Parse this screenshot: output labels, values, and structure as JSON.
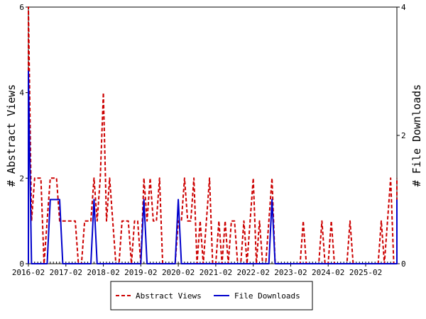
{
  "chart_data": {
    "type": "line",
    "ylabel_left": "# Abstract Views",
    "ylabel_right": "# File Downloads",
    "xlabel": "",
    "ylim_left": [
      0,
      6
    ],
    "ylim_right": [
      0,
      4
    ],
    "yticks_left": [
      0,
      2,
      4,
      6
    ],
    "yticks_right": [
      0,
      2,
      4
    ],
    "x_ticks": [
      "2016-02",
      "2017-02",
      "2018-02",
      "2019-02",
      "2020-02",
      "2021-02",
      "2022-02",
      "2023-02",
      "2024-02",
      "2025-02"
    ],
    "x_start": "2016-02",
    "x_end": "2025-12",
    "grid": false,
    "legend_position": "bottom",
    "series": [
      {
        "name": "Abstract Views",
        "axis": "left",
        "color": "#cc0000",
        "style": "dashed",
        "points": [
          [
            "2016-01",
            0
          ],
          [
            "2016-02",
            6
          ],
          [
            "2016-03",
            1
          ],
          [
            "2016-04",
            2
          ],
          [
            "2016-05",
            2
          ],
          [
            "2016-06",
            2
          ],
          [
            "2016-07",
            0
          ],
          [
            "2016-08",
            1
          ],
          [
            "2016-09",
            2
          ],
          [
            "2016-10",
            2
          ],
          [
            "2016-11",
            2
          ],
          [
            "2016-12",
            1
          ],
          [
            "2017-01",
            1
          ],
          [
            "2017-02",
            1
          ],
          [
            "2017-03",
            1
          ],
          [
            "2017-04",
            1
          ],
          [
            "2017-05",
            1
          ],
          [
            "2017-06",
            0
          ],
          [
            "2017-07",
            0
          ],
          [
            "2017-08",
            1
          ],
          [
            "2017-09",
            1
          ],
          [
            "2017-10",
            1
          ],
          [
            "2017-11",
            2
          ],
          [
            "2017-12",
            1
          ],
          [
            "2018-01",
            2
          ],
          [
            "2018-02",
            4
          ],
          [
            "2018-03",
            1
          ],
          [
            "2018-04",
            2
          ],
          [
            "2018-05",
            1
          ],
          [
            "2018-06",
            0
          ],
          [
            "2018-07",
            0
          ],
          [
            "2018-08",
            1
          ],
          [
            "2018-09",
            1
          ],
          [
            "2018-10",
            1
          ],
          [
            "2018-11",
            0
          ],
          [
            "2018-12",
            1
          ],
          [
            "2019-01",
            1
          ],
          [
            "2019-02",
            0
          ],
          [
            "2019-03",
            2
          ],
          [
            "2019-04",
            1
          ],
          [
            "2019-05",
            2
          ],
          [
            "2019-06",
            1
          ],
          [
            "2019-07",
            1
          ],
          [
            "2019-08",
            2
          ],
          [
            "2019-09",
            0
          ],
          [
            "2019-10",
            0
          ],
          [
            "2019-11",
            0
          ],
          [
            "2019-12",
            0
          ],
          [
            "2020-01",
            0
          ],
          [
            "2020-02",
            1
          ],
          [
            "2020-03",
            1
          ],
          [
            "2020-04",
            2
          ],
          [
            "2020-05",
            1
          ],
          [
            "2020-06",
            1
          ],
          [
            "2020-07",
            2
          ],
          [
            "2020-08",
            0
          ],
          [
            "2020-09",
            1
          ],
          [
            "2020-10",
            0
          ],
          [
            "2020-11",
            1
          ],
          [
            "2020-12",
            2
          ],
          [
            "2021-01",
            0
          ],
          [
            "2021-02",
            0
          ],
          [
            "2021-03",
            1
          ],
          [
            "2021-04",
            0
          ],
          [
            "2021-05",
            1
          ],
          [
            "2021-06",
            0
          ],
          [
            "2021-07",
            1
          ],
          [
            "2021-08",
            1
          ],
          [
            "2021-09",
            0
          ],
          [
            "2021-10",
            0
          ],
          [
            "2021-11",
            1
          ],
          [
            "2021-12",
            0
          ],
          [
            "2022-01",
            1
          ],
          [
            "2022-02",
            2
          ],
          [
            "2022-03",
            0
          ],
          [
            "2022-04",
            1
          ],
          [
            "2022-05",
            0
          ],
          [
            "2022-06",
            0
          ],
          [
            "2022-07",
            1
          ],
          [
            "2022-08",
            2
          ],
          [
            "2022-09",
            0
          ],
          [
            "2022-10",
            0
          ],
          [
            "2022-11",
            0
          ],
          [
            "2022-12",
            0
          ],
          [
            "2023-01",
            0
          ],
          [
            "2023-02",
            0
          ],
          [
            "2023-03",
            0
          ],
          [
            "2023-04",
            0
          ],
          [
            "2023-05",
            0
          ],
          [
            "2023-06",
            1
          ],
          [
            "2023-07",
            0
          ],
          [
            "2023-08",
            0
          ],
          [
            "2023-09",
            0
          ],
          [
            "2023-10",
            0
          ],
          [
            "2023-11",
            0
          ],
          [
            "2023-12",
            1
          ],
          [
            "2024-01",
            0
          ],
          [
            "2024-02",
            0
          ],
          [
            "2024-03",
            1
          ],
          [
            "2024-04",
            0
          ],
          [
            "2024-05",
            0
          ],
          [
            "2024-06",
            0
          ],
          [
            "2024-07",
            0
          ],
          [
            "2024-08",
            0
          ],
          [
            "2024-09",
            1
          ],
          [
            "2024-10",
            0
          ],
          [
            "2024-11",
            0
          ],
          [
            "2024-12",
            0
          ],
          [
            "2025-01",
            0
          ],
          [
            "2025-02",
            0
          ],
          [
            "2025-03",
            0
          ],
          [
            "2025-04",
            0
          ],
          [
            "2025-05",
            0
          ],
          [
            "2025-06",
            0
          ],
          [
            "2025-07",
            1
          ],
          [
            "2025-08",
            0
          ],
          [
            "2025-09",
            1
          ],
          [
            "2025-10",
            2
          ],
          [
            "2025-11",
            0
          ],
          [
            "2025-12",
            0
          ],
          [
            "2026-01",
            2
          ]
        ]
      },
      {
        "name": "File Downloads",
        "axis": "right",
        "color": "#0000cc",
        "style": "solid",
        "points": [
          [
            "2016-01",
            0
          ],
          [
            "2016-02",
            3
          ],
          [
            "2016-03",
            0
          ],
          [
            "2016-04",
            0
          ],
          [
            "2016-05",
            0
          ],
          [
            "2016-06",
            0
          ],
          [
            "2016-07",
            0
          ],
          [
            "2016-08",
            0
          ],
          [
            "2016-09",
            1
          ],
          [
            "2016-10",
            1
          ],
          [
            "2016-11",
            1
          ],
          [
            "2016-12",
            1
          ],
          [
            "2017-01",
            0
          ],
          [
            "2017-02",
            0
          ],
          [
            "2017-03",
            0
          ],
          [
            "2017-04",
            0
          ],
          [
            "2017-05",
            0
          ],
          [
            "2017-06",
            0
          ],
          [
            "2017-07",
            0
          ],
          [
            "2017-08",
            0
          ],
          [
            "2017-09",
            0
          ],
          [
            "2017-10",
            0
          ],
          [
            "2017-11",
            1
          ],
          [
            "2017-12",
            0
          ],
          [
            "2018-01",
            0
          ],
          [
            "2018-02",
            0
          ],
          [
            "2018-03",
            0
          ],
          [
            "2018-04",
            0
          ],
          [
            "2018-05",
            0
          ],
          [
            "2018-06",
            0
          ],
          [
            "2018-07",
            0
          ],
          [
            "2018-08",
            0
          ],
          [
            "2018-09",
            0
          ],
          [
            "2018-10",
            0
          ],
          [
            "2018-11",
            0
          ],
          [
            "2018-12",
            0
          ],
          [
            "2019-01",
            0
          ],
          [
            "2019-02",
            0
          ],
          [
            "2019-03",
            1
          ],
          [
            "2019-04",
            0
          ],
          [
            "2019-05",
            0
          ],
          [
            "2019-06",
            0
          ],
          [
            "2019-07",
            0
          ],
          [
            "2019-08",
            0
          ],
          [
            "2019-09",
            0
          ],
          [
            "2019-10",
            0
          ],
          [
            "2019-11",
            0
          ],
          [
            "2019-12",
            0
          ],
          [
            "2020-01",
            0
          ],
          [
            "2020-02",
            1
          ],
          [
            "2020-03",
            0
          ],
          [
            "2020-04",
            0
          ],
          [
            "2020-05",
            0
          ],
          [
            "2020-06",
            0
          ],
          [
            "2020-07",
            0
          ],
          [
            "2020-08",
            0
          ],
          [
            "2020-09",
            0
          ],
          [
            "2020-10",
            0
          ],
          [
            "2020-11",
            0
          ],
          [
            "2020-12",
            0
          ],
          [
            "2021-01",
            0
          ],
          [
            "2021-02",
            0
          ],
          [
            "2021-03",
            0
          ],
          [
            "2021-04",
            0
          ],
          [
            "2021-05",
            0
          ],
          [
            "2021-06",
            0
          ],
          [
            "2021-07",
            0
          ],
          [
            "2021-08",
            0
          ],
          [
            "2021-09",
            0
          ],
          [
            "2021-10",
            0
          ],
          [
            "2021-11",
            0
          ],
          [
            "2021-12",
            0
          ],
          [
            "2022-01",
            0
          ],
          [
            "2022-02",
            0
          ],
          [
            "2022-03",
            0
          ],
          [
            "2022-04",
            0
          ],
          [
            "2022-05",
            0
          ],
          [
            "2022-06",
            0
          ],
          [
            "2022-07",
            0
          ],
          [
            "2022-08",
            1
          ],
          [
            "2022-09",
            0
          ],
          [
            "2022-10",
            0
          ],
          [
            "2022-11",
            0
          ],
          [
            "2022-12",
            0
          ],
          [
            "2023-01",
            0
          ],
          [
            "2023-02",
            0
          ],
          [
            "2023-03",
            0
          ],
          [
            "2023-04",
            0
          ],
          [
            "2023-05",
            0
          ],
          [
            "2023-06",
            0
          ],
          [
            "2023-07",
            0
          ],
          [
            "2023-08",
            0
          ],
          [
            "2023-09",
            0
          ],
          [
            "2023-10",
            0
          ],
          [
            "2023-11",
            0
          ],
          [
            "2023-12",
            0
          ],
          [
            "2024-01",
            0
          ],
          [
            "2024-02",
            0
          ],
          [
            "2024-03",
            0
          ],
          [
            "2024-04",
            0
          ],
          [
            "2024-05",
            0
          ],
          [
            "2024-06",
            0
          ],
          [
            "2024-07",
            0
          ],
          [
            "2024-08",
            0
          ],
          [
            "2024-09",
            0
          ],
          [
            "2024-10",
            0
          ],
          [
            "2024-11",
            0
          ],
          [
            "2024-12",
            0
          ],
          [
            "2025-01",
            0
          ],
          [
            "2025-02",
            0
          ],
          [
            "2025-03",
            0
          ],
          [
            "2025-04",
            0
          ],
          [
            "2025-05",
            0
          ],
          [
            "2025-06",
            0
          ],
          [
            "2025-07",
            0
          ],
          [
            "2025-08",
            0
          ],
          [
            "2025-09",
            0
          ],
          [
            "2025-10",
            0
          ],
          [
            "2025-11",
            0
          ],
          [
            "2025-12",
            0
          ],
          [
            "2026-01",
            1
          ]
        ]
      }
    ]
  }
}
